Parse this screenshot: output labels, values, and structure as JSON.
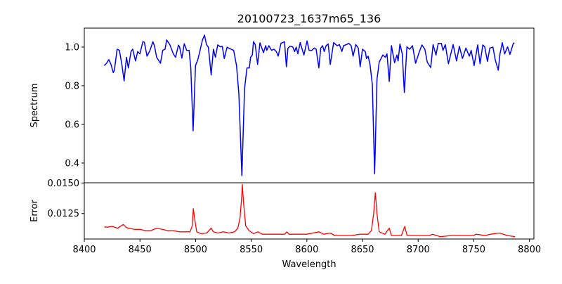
{
  "chart_data": [
    {
      "type": "line",
      "title": "20100723_1637m65_136",
      "xlabel": "",
      "ylabel": "Spectrum",
      "xlim": [
        8400,
        8804
      ],
      "ylim": [
        0.298,
        1.098
      ],
      "yticks": [
        "0.4",
        "0.6",
        "0.8",
        "1.0"
      ],
      "ytick_values": [
        0.4,
        0.6,
        0.8,
        1.0
      ],
      "grid": false,
      "series": [
        {
          "name": "Spectrum",
          "color": "#0000ff",
          "x": [
            8417.9,
            8420,
            8422,
            8424,
            8426,
            8427,
            8429.5,
            8431.5,
            8433.6,
            8435.8,
            8437.9,
            8439.6,
            8442,
            8443.5,
            8446,
            8448,
            8450,
            8452.6,
            8454,
            8456.4,
            8459,
            8461.6,
            8463,
            8465,
            8468.4,
            8470.5,
            8472.6,
            8474,
            8476.8,
            8480,
            8482,
            8484.6,
            8485.6,
            8487.7,
            8489.8,
            8492,
            8494.2,
            8495.7,
            8497.8,
            8499.9,
            8502,
            8504,
            8506.2,
            8508,
            8509.8,
            8511.5,
            8514,
            8516,
            8517.8,
            8519.9,
            8522.4,
            8524,
            8525.8,
            8528.3,
            8532.5,
            8534.2,
            8536.8,
            8538.9,
            8541.6,
            8544,
            8545.2,
            8546.2,
            8548.3,
            8549.4,
            8551,
            8552,
            8553.6,
            8555.7,
            8557.8,
            8561,
            8563,
            8564,
            8565.8,
            8568.3,
            8570.4,
            8572.5,
            8574.2,
            8576.7,
            8579.9,
            8581.6,
            8583,
            8585,
            8587.3,
            8589,
            8590.4,
            8591.9,
            8594,
            8597.3,
            8600.2,
            8602,
            8604.5,
            8606.6,
            8608.3,
            8610.8,
            8612.5,
            8614.1,
            8615.6,
            8617.3,
            8619.2,
            8621,
            8624,
            8627.2,
            8629.3,
            8631.4,
            8633,
            8635.6,
            8637.7,
            8639.8,
            8641.5,
            8644,
            8646.2,
            8647.9,
            8650,
            8652.5,
            8653.6,
            8655,
            8656.7,
            8658.8,
            8660.9,
            8663,
            8665,
            8668.3,
            8670.4,
            8672,
            8674,
            8676,
            8678.8,
            8680.9,
            8682,
            8683.6,
            8685.7,
            8687.6,
            8689.9,
            8692.4,
            8694.9,
            8697.7,
            8700.8,
            8703.4,
            8706,
            8708.2,
            8711.3,
            8713.4,
            8716,
            8718,
            8720.8,
            8722.3,
            8724.4,
            8727.2,
            8731.4,
            8734.5,
            8737,
            8739.8,
            8742.9,
            8746,
            8747.6,
            8750.3,
            8753.5,
            8755.6,
            8758.1,
            8759.8,
            8762.3,
            8764.4,
            8767.2,
            8769.2,
            8772,
            8773.5,
            8775.6,
            8777.7,
            8780.4,
            8782.5,
            8785.5,
            8786.5
          ],
          "y": [
            0.904,
            0.916,
            0.935,
            0.91,
            0.868,
            0.88,
            0.989,
            0.983,
            0.916,
            0.825,
            0.947,
            0.892,
            0.977,
            0.989,
            0.928,
            0.977,
            0.965,
            1.028,
            1.025,
            0.953,
            0.983,
            1.028,
            1.007,
            0.947,
            0.916,
            0.983,
            0.989,
            1.037,
            1.013,
            0.965,
            0.947,
            1.01,
            1.001,
            0.943,
            1.017,
            0.983,
            0.983,
            0.892,
            0.567,
            0.904,
            0.935,
            0.983,
            1.037,
            1.062,
            1.013,
            1.0,
            0.856,
            0.989,
            0.947,
            1.011,
            1.001,
            1.004,
            0.941,
            0.999,
            0.987,
            0.983,
            0.904,
            0.759,
            0.335,
            0.783,
            0.844,
            0.892,
            0.892,
            0.947,
            0.959,
            1.028,
            1.013,
            0.91,
            1.022,
            0.971,
            1.007,
            0.983,
            1.007,
            0.983,
            0.989,
            0.977,
            0.953,
            1.019,
            1.028,
            0.898,
            0.995,
            1.004,
            1.001,
            0.977,
            1.0,
            0.965,
            1.023,
            0.959,
            1.032,
            0.983,
            0.983,
            0.995,
            0.989,
            0.892,
            0.995,
            1.007,
            0.977,
            1.007,
            1.016,
            0.91,
            1.023,
            1.007,
            1.013,
            0.977,
            1.007,
            1.013,
            1.019,
            1.007,
            0.953,
            1.013,
            0.995,
            0.898,
            0.989,
            0.977,
            0.941,
            0.953,
            0.91,
            0.807,
            0.344,
            0.832,
            0.922,
            0.959,
            0.947,
            0.965,
            0.822,
            1.007,
            0.919,
            0.959,
            0.928,
            1.016,
            0.965,
            0.765,
            1.001,
            0.989,
            1.007,
            0.916,
            0.971,
            1.011,
            0.989,
            0.922,
            0.894,
            1.013,
            0.959,
            1.019,
            1.019,
            0.983,
            1.013,
            0.914,
            1.013,
            0.928,
            1.004,
            0.941,
            0.995,
            0.953,
            0.983,
            0.904,
            1.011,
            0.914,
            1.011,
            1.001,
            0.926,
            0.995,
            1.0,
            0.935,
            0.88,
            0.965,
            1.023,
            0.965,
            1.001,
            0.962,
            1.019,
            1.022
          ]
        }
      ]
    },
    {
      "type": "line",
      "title": "",
      "xlabel": "Wavelength",
      "ylabel": "Error",
      "xlim": [
        8400,
        8804
      ],
      "ylim": [
        0.01041,
        0.01502
      ],
      "xticks": [
        "8400",
        "8450",
        "8500",
        "8550",
        "8600",
        "8650",
        "8700",
        "8750",
        "8800"
      ],
      "xtick_values": [
        8400,
        8450,
        8500,
        8550,
        8600,
        8650,
        8700,
        8750,
        8800
      ],
      "yticks": [
        "0.0125",
        "0.0150"
      ],
      "ytick_values": [
        0.0125,
        0.015
      ],
      "grid": false,
      "series": [
        {
          "name": "Error",
          "color": "#ff0000",
          "x": [
            8418,
            8421,
            8425,
            8430,
            8435,
            8438,
            8440,
            8445,
            8450,
            8455,
            8460,
            8465,
            8470,
            8475,
            8480,
            8485,
            8490,
            8495,
            8497,
            8498,
            8499,
            8501,
            8505,
            8510,
            8514,
            8516,
            8520,
            8525,
            8530,
            8535,
            8538,
            8540,
            8541.5,
            8542,
            8543,
            8545,
            8548,
            8552,
            8556,
            8560,
            8570,
            8580,
            8582,
            8584,
            8600,
            8611,
            8615,
            8621,
            8625,
            8640,
            8648,
            8655,
            8658,
            8660,
            8661.5,
            8663,
            8665,
            8670,
            8674,
            8676,
            8685,
            8688,
            8690,
            8700,
            8710,
            8713,
            8720,
            8730,
            8740,
            8750,
            8752,
            8760,
            8765,
            8773,
            8780,
            8787
          ],
          "y": [
            0.0114,
            0.01138,
            0.01145,
            0.0113,
            0.0116,
            0.01135,
            0.0113,
            0.0112,
            0.0112,
            0.0111,
            0.0111,
            0.0113,
            0.0112,
            0.0111,
            0.0111,
            0.011,
            0.011,
            0.011,
            0.0115,
            0.0129,
            0.0122,
            0.011,
            0.01085,
            0.0109,
            0.0113,
            0.011,
            0.0109,
            0.011,
            0.0109,
            0.011,
            0.0113,
            0.0122,
            0.014,
            0.01488,
            0.0135,
            0.0115,
            0.0111,
            0.01085,
            0.011,
            0.0108,
            0.0108,
            0.0108,
            0.011,
            0.0108,
            0.0108,
            0.011,
            0.0108,
            0.0109,
            0.0107,
            0.0107,
            0.0108,
            0.0108,
            0.0111,
            0.0125,
            0.0142,
            0.0125,
            0.011,
            0.0108,
            0.0113,
            0.0107,
            0.0107,
            0.01145,
            0.0107,
            0.0107,
            0.0107,
            0.0108,
            0.0106,
            0.0107,
            0.0107,
            0.0107,
            0.0108,
            0.0107,
            0.0108,
            0.0109,
            0.0107,
            0.0106
          ]
        }
      ]
    }
  ]
}
